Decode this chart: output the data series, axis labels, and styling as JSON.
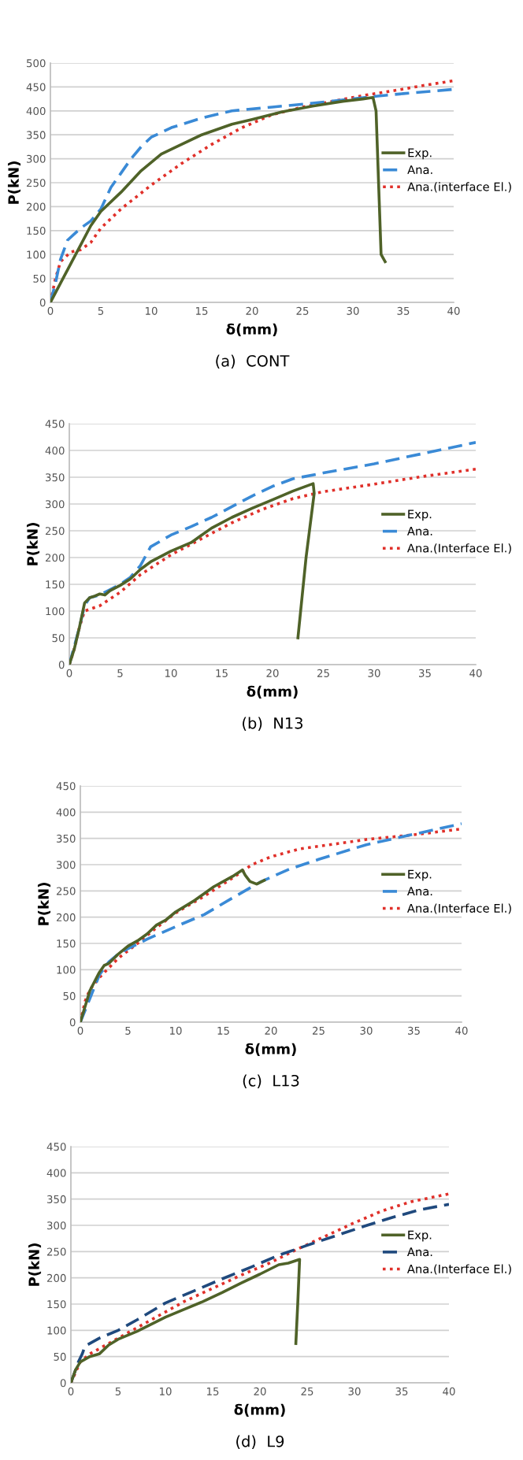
{
  "chart_data": [
    {
      "type": "line",
      "xlabel": "δ(mm)",
      "ylabel": "P(kN)",
      "annotations": [
        "(a)  CONT"
      ],
      "xlim": [
        0,
        40
      ],
      "ylim": [
        0,
        500
      ],
      "xticks": [
        0,
        5,
        10,
        15,
        20,
        25,
        30,
        35,
        40
      ],
      "yticks": [
        0,
        50,
        100,
        150,
        200,
        250,
        300,
        350,
        400,
        450,
        500
      ],
      "grid": "y",
      "legend": "right",
      "series": [
        {
          "name": "Exp.",
          "color": "#4f6228",
          "line_style": "solid",
          "x": [
            0,
            1,
            2,
            3,
            4,
            5,
            7,
            9,
            11,
            13,
            15,
            18,
            20,
            23,
            26,
            29,
            31,
            32,
            32.3,
            32.8,
            33.2
          ],
          "values": [
            0,
            40,
            80,
            120,
            160,
            190,
            230,
            275,
            310,
            330,
            350,
            372,
            382,
            398,
            410,
            420,
            425,
            428,
            400,
            100,
            85
          ]
        },
        {
          "name": "Ana.",
          "color": "#3a8ad6",
          "line_style": "dashed",
          "x": [
            0,
            0.5,
            1,
            1.7,
            3,
            4,
            5,
            6,
            7,
            8,
            9,
            10,
            12,
            15,
            18,
            22,
            26,
            30,
            32,
            35,
            40
          ],
          "values": [
            0,
            40,
            90,
            130,
            155,
            170,
            195,
            240,
            270,
            300,
            325,
            345,
            365,
            385,
            400,
            408,
            416,
            425,
            430,
            436,
            445
          ]
        },
        {
          "name": "Ana.(interface El.)",
          "color": "#e0302a",
          "line_style": "dotted",
          "x": [
            0,
            0.5,
            1,
            2,
            3,
            4,
            5,
            7,
            10,
            13,
            16,
            19,
            22,
            25,
            28,
            31,
            34,
            37,
            40
          ],
          "values": [
            0,
            50,
            85,
            105,
            110,
            125,
            155,
            195,
            245,
            290,
            330,
            365,
            392,
            408,
            420,
            432,
            442,
            453,
            463
          ]
        }
      ]
    },
    {
      "type": "line",
      "xlabel": "δ(mm)",
      "ylabel": "P(kN)",
      "annotations": [
        "(b)  N13"
      ],
      "xlim": [
        0,
        40
      ],
      "ylim": [
        0,
        450
      ],
      "xticks": [
        0,
        5,
        10,
        15,
        20,
        25,
        30,
        35,
        40
      ],
      "yticks": [
        0,
        50,
        100,
        150,
        200,
        250,
        300,
        350,
        400,
        450
      ],
      "grid": "y",
      "legend": "right",
      "series": [
        {
          "name": "Exp.",
          "color": "#4f6228",
          "line_style": "solid",
          "x": [
            0,
            0.5,
            1,
            1.5,
            2,
            2.5,
            3,
            3.5,
            4,
            5,
            6,
            7,
            8,
            10,
            12,
            14,
            16,
            18,
            20,
            22,
            24,
            24.1,
            23.3,
            22.5
          ],
          "values": [
            0,
            30,
            70,
            115,
            125,
            128,
            132,
            130,
            138,
            148,
            160,
            178,
            192,
            212,
            228,
            255,
            275,
            292,
            308,
            324,
            338,
            320,
            200,
            50
          ]
        },
        {
          "name": "Ana.",
          "color": "#3a8ad6",
          "line_style": "dashed",
          "x": [
            0,
            0.5,
            1,
            1.5,
            2,
            3,
            4,
            5,
            6,
            7,
            8,
            10,
            12,
            14,
            16,
            18,
            20,
            22,
            25,
            30,
            35,
            40
          ],
          "values": [
            0,
            35,
            70,
            110,
            125,
            130,
            140,
            150,
            163,
            185,
            220,
            242,
            258,
            275,
            295,
            315,
            333,
            347,
            358,
            375,
            395,
            415
          ]
        },
        {
          "name": "Ana.(Interface El.)",
          "color": "#e0302a",
          "line_style": "dotted",
          "x": [
            0,
            0.5,
            1,
            1.5,
            3,
            5,
            7,
            10,
            13,
            16,
            19,
            22,
            25,
            30,
            35,
            40
          ],
          "values": [
            0,
            30,
            70,
            100,
            110,
            135,
            168,
            205,
            235,
            265,
            290,
            310,
            323,
            337,
            352,
            365
          ]
        }
      ]
    },
    {
      "type": "line",
      "xlabel": "δ(mm)",
      "ylabel": "P(kN)",
      "annotations": [
        "(c)  L13"
      ],
      "xlim": [
        0,
        40
      ],
      "ylim": [
        0,
        450
      ],
      "xticks": [
        0,
        5,
        10,
        15,
        20,
        25,
        30,
        35,
        40
      ],
      "yticks": [
        0,
        50,
        100,
        150,
        200,
        250,
        300,
        350,
        400,
        450
      ],
      "grid": "y",
      "legend": "right",
      "series": [
        {
          "name": "Exp.",
          "color": "#4f6228",
          "line_style": "solid",
          "x": [
            0,
            0.5,
            1,
            2,
            2.5,
            3,
            4,
            5,
            6,
            7,
            8,
            9,
            10,
            12,
            14,
            16,
            17,
            17.3,
            17.8,
            18.5,
            19.3
          ],
          "values": [
            0,
            30,
            60,
            95,
            108,
            112,
            130,
            145,
            155,
            168,
            185,
            195,
            210,
            232,
            258,
            278,
            290,
            280,
            268,
            263,
            270
          ]
        },
        {
          "name": "Ana.",
          "color": "#3a8ad6",
          "line_style": "dashed",
          "x": [
            0,
            1,
            2,
            3,
            4,
            5,
            7,
            10,
            13,
            16,
            19,
            22,
            25,
            30,
            35,
            40
          ],
          "values": [
            0,
            45,
            90,
            115,
            130,
            140,
            158,
            182,
            205,
            237,
            268,
            292,
            310,
            338,
            358,
            378
          ]
        },
        {
          "name": "Ana.(Interface El.)",
          "color": "#e0302a",
          "line_style": "dotted",
          "x": [
            0,
            0.5,
            1,
            2,
            4,
            6,
            8,
            10,
            13,
            16,
            18,
            20,
            23,
            27,
            30,
            35,
            40
          ],
          "values": [
            0,
            40,
            62,
            85,
            122,
            150,
            180,
            208,
            240,
            275,
            300,
            315,
            330,
            340,
            348,
            357,
            368
          ]
        }
      ]
    },
    {
      "type": "line",
      "xlabel": "δ(mm)",
      "ylabel": "P(kN)",
      "annotations": [
        "(d)  L9"
      ],
      "xlim": [
        0,
        40
      ],
      "ylim": [
        0,
        450
      ],
      "xticks": [
        0,
        5,
        10,
        15,
        20,
        25,
        30,
        35,
        40
      ],
      "yticks": [
        0,
        50,
        100,
        150,
        200,
        250,
        300,
        350,
        400,
        450
      ],
      "grid": "y",
      "legend": "right",
      "series": [
        {
          "name": "Exp.",
          "color": "#4f6228",
          "line_style": "solid",
          "x": [
            0,
            0.5,
            1,
            2,
            3,
            4,
            5,
            7,
            10,
            12,
            14,
            16,
            18,
            20,
            22,
            23,
            24.2,
            24,
            23.8
          ],
          "values": [
            0,
            25,
            40,
            50,
            55,
            72,
            83,
            98,
            125,
            140,
            155,
            172,
            190,
            207,
            225,
            228,
            235,
            150,
            75
          ]
        },
        {
          "name": "Ana.",
          "color": "#1f497d",
          "line_style": "dashed",
          "x": [
            0,
            0.8,
            1.2,
            1.5,
            3,
            5,
            7,
            10,
            13,
            16,
            19,
            22,
            25,
            28,
            31,
            34,
            37,
            40
          ],
          "values": [
            0,
            40,
            55,
            70,
            85,
            100,
            120,
            152,
            175,
            198,
            220,
            243,
            262,
            280,
            298,
            315,
            330,
            340
          ]
        },
        {
          "name": "Ana.(Interface El.)",
          "color": "#e0302a",
          "line_style": "dotted",
          "x": [
            0,
            1,
            2,
            4,
            6,
            9,
            12,
            15,
            18,
            21,
            24,
            27,
            30,
            33,
            36,
            40
          ],
          "values": [
            0,
            40,
            55,
            75,
            95,
            125,
            155,
            180,
            205,
            228,
            255,
            280,
            305,
            328,
            345,
            360
          ]
        }
      ]
    }
  ]
}
